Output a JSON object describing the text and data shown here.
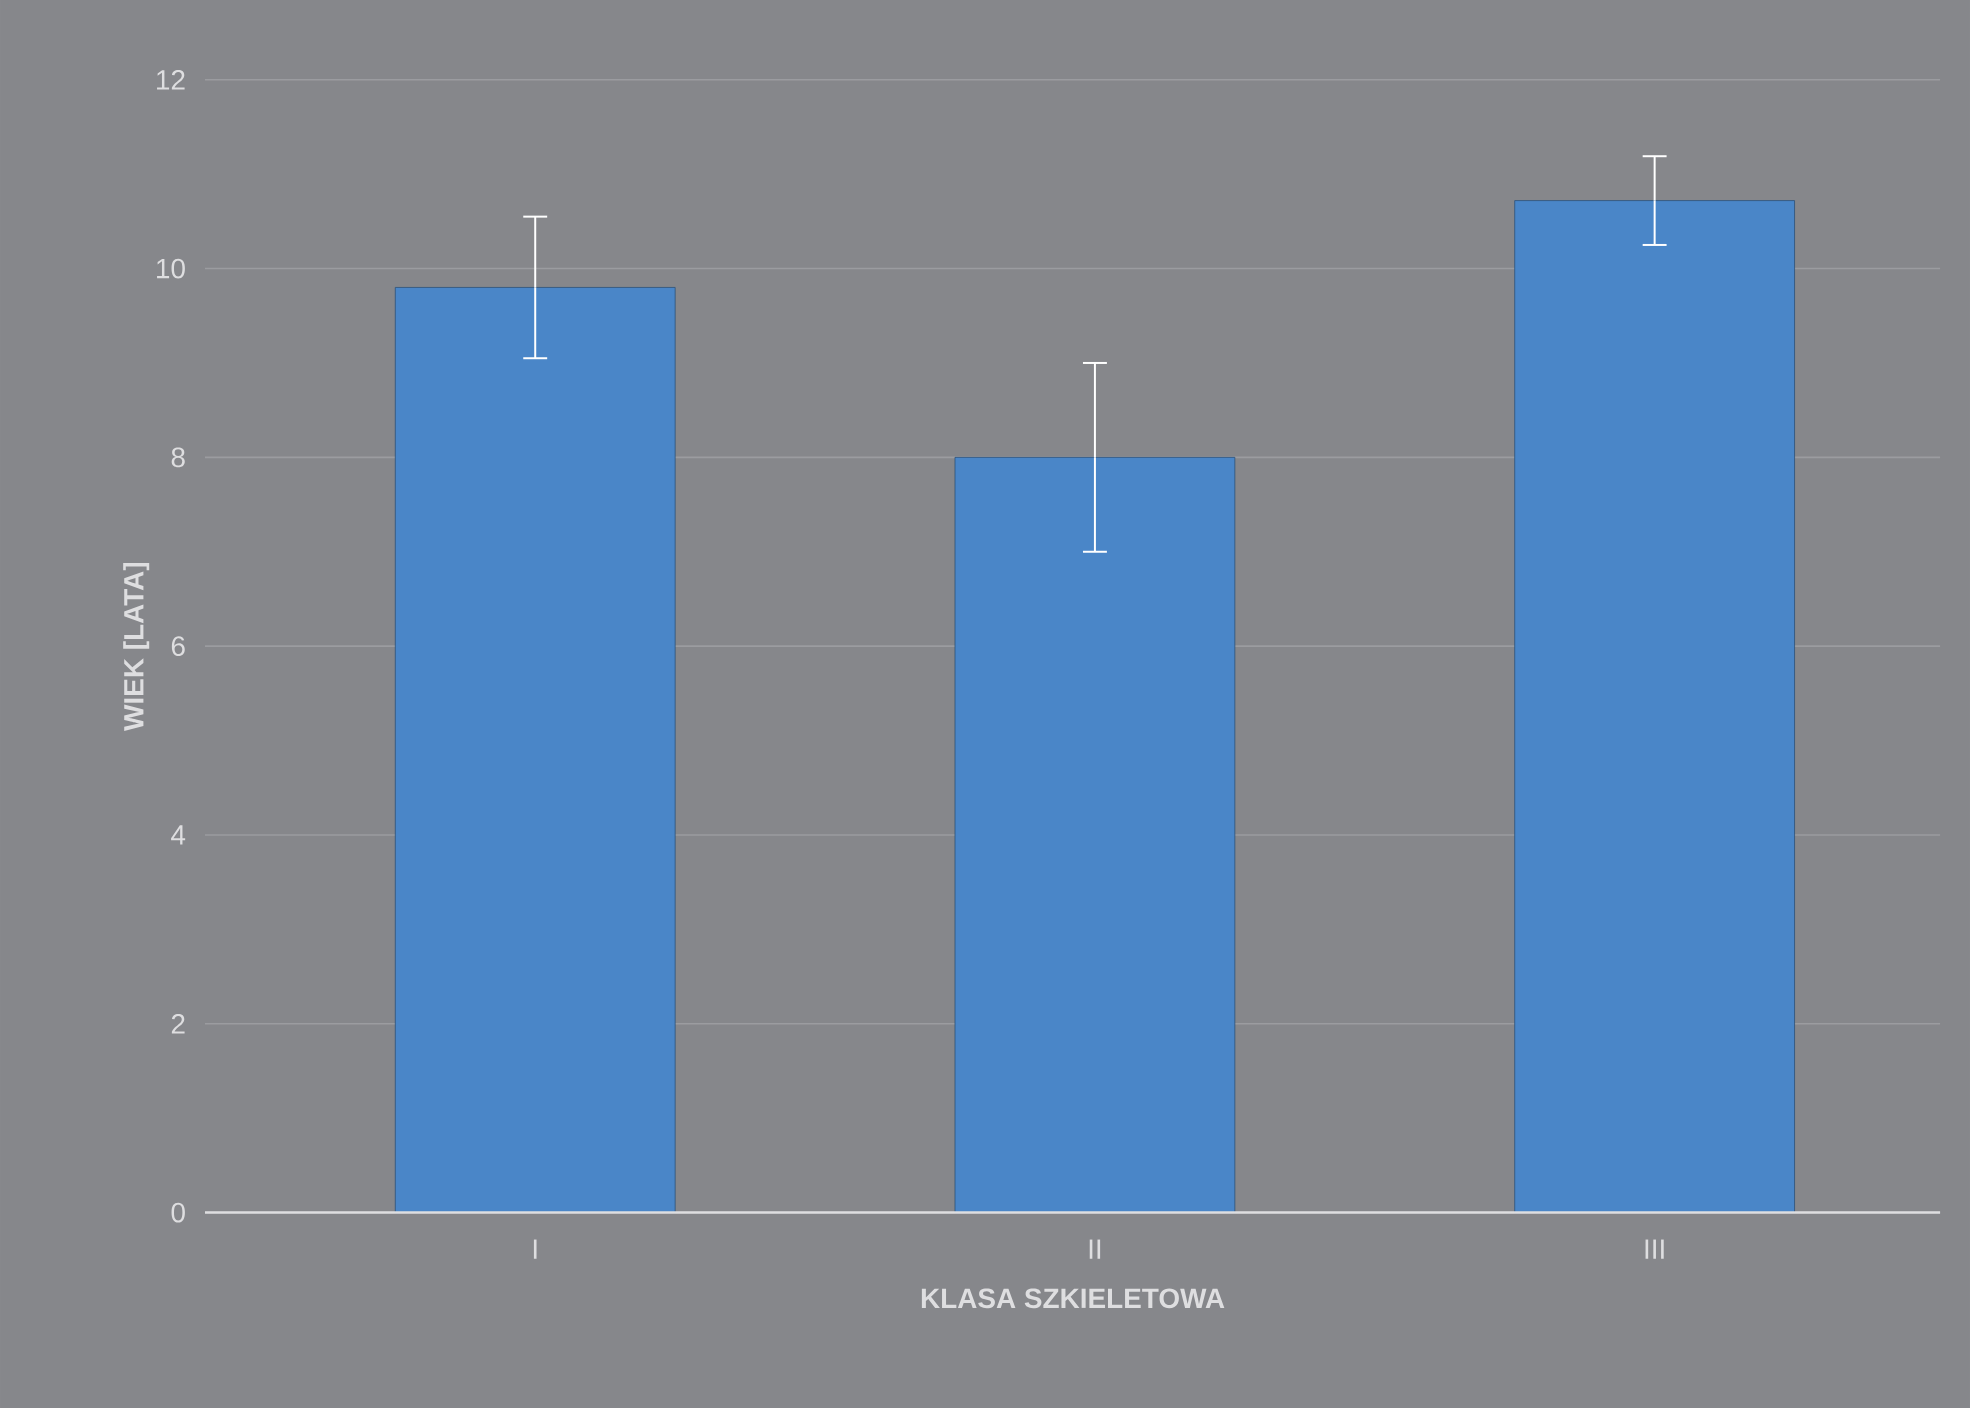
{
  "chart_data": {
    "type": "bar",
    "xlabel": "KLASA SZKIELETOWA",
    "ylabel": "WIEK [LATA]",
    "categories": [
      "I",
      "II",
      "III"
    ],
    "values": [
      9.8,
      8.0,
      10.72
    ],
    "errors": [
      0.75,
      1.0,
      0.47
    ],
    "color": "#4a86c8",
    "ylim": [
      0,
      12
    ],
    "yticks": [
      0,
      2,
      4,
      6,
      8,
      10,
      12
    ],
    "grid": "y"
  }
}
